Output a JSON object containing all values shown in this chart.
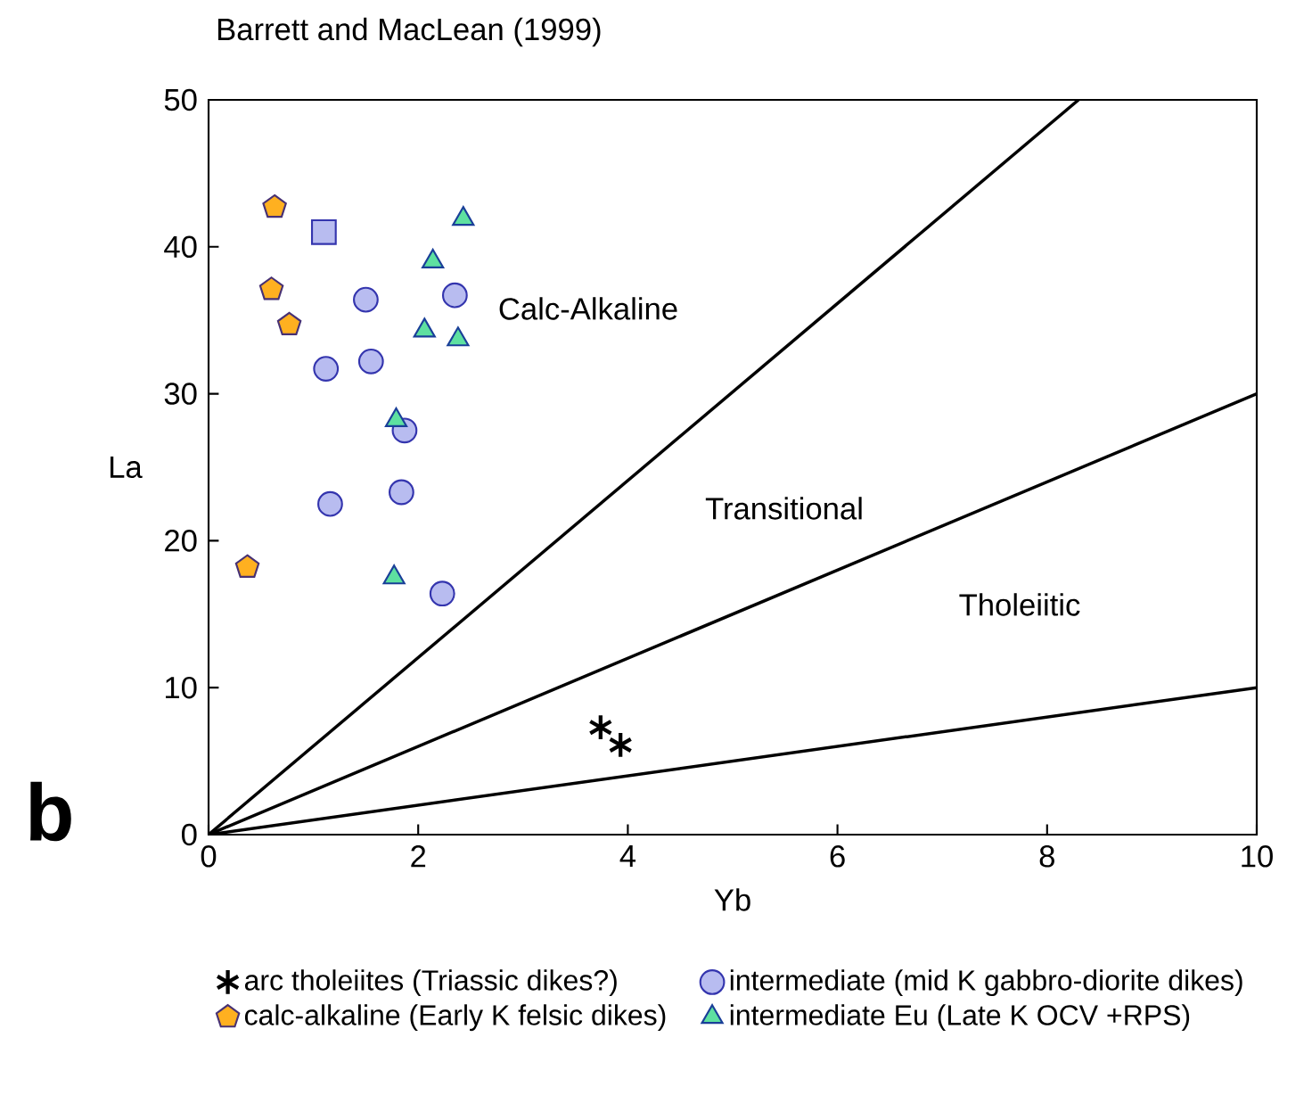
{
  "chart_data": {
    "type": "scatter",
    "title": "Barrett and MacLean (1999)",
    "xlabel": "Yb",
    "ylabel": "La",
    "xlim": [
      0,
      10
    ],
    "ylim": [
      0,
      50
    ],
    "xticks": [
      0,
      2,
      4,
      6,
      8,
      10
    ],
    "yticks": [
      0,
      10,
      20,
      30,
      40,
      50
    ],
    "legend": "bottom",
    "series": [
      {
        "name": "arc tholeiites (Triassic dikes?)",
        "marker": "cross",
        "color": "#000000",
        "x": [
          3.74,
          3.93
        ],
        "values": [
          7.3,
          6.1
        ]
      },
      {
        "name": "intermediate (mid K gabbro-diorite dikes)",
        "marker": "circle",
        "color": "#b8bcf0",
        "x": [
          1.5,
          2.35,
          1.12,
          1.55,
          1.87,
          1.84,
          1.16,
          2.23
        ],
        "values": [
          36.4,
          36.7,
          31.7,
          32.2,
          27.5,
          23.3,
          22.5,
          16.4
        ]
      },
      {
        "name": "calc-alkaline (Early K felsic dikes)",
        "color": "#ffb020",
        "x": [
          0.63,
          0.6,
          0.77,
          0.37
        ],
        "values": [
          42.7,
          37.1,
          34.7,
          18.2
        ]
      },
      {
        "name": "intermediate Eu (Late K OCV +RPS)",
        "marker": "triangle",
        "color": "#5ee0a0",
        "x": [
          2.43,
          2.14,
          2.06,
          2.38,
          1.79,
          1.77
        ],
        "values": [
          41.9,
          39.0,
          34.3,
          33.7,
          28.2,
          17.5
        ]
      },
      {
        "marker": "square",
        "color": "#b8bcf0",
        "x": [
          1.1
        ],
        "values": [
          41.0
        ]
      },
      {
        "type": "line",
        "color": "#000000",
        "line_style": "solid",
        "x": [
          0,
          8.3
        ],
        "values": [
          0,
          50
        ]
      },
      {
        "type": "line",
        "color": "#000000",
        "line_style": "solid",
        "x": [
          0,
          10
        ],
        "values": [
          0,
          30
        ]
      },
      {
        "type": "line",
        "color": "#000000",
        "line_style": "solid",
        "x": [
          0,
          10
        ],
        "values": [
          0,
          10
        ]
      }
    ],
    "annotations": [
      "Calc-Alkaline",
      "Transitional",
      "Tholeiitic",
      "b"
    ]
  }
}
